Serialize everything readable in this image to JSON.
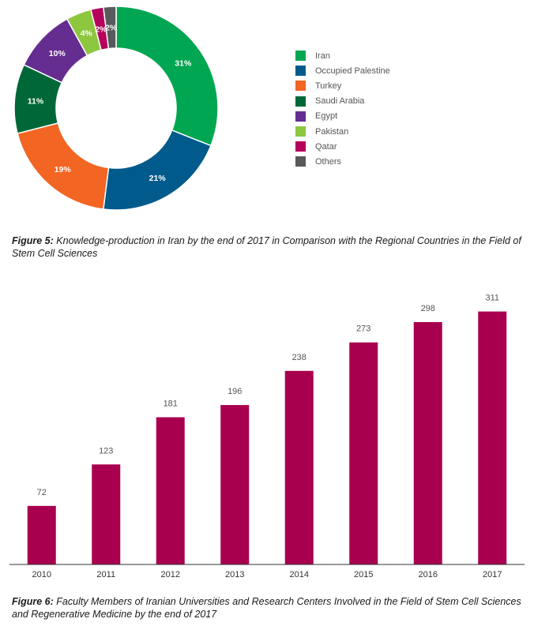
{
  "chart_data": [
    {
      "type": "pie",
      "variant": "donut",
      "slices": [
        {
          "label": "Iran",
          "value": 31,
          "display": "31%",
          "color": "#00a651"
        },
        {
          "label": "Occupied Palestine",
          "value": 21,
          "display": "21%",
          "color": "#005b8c"
        },
        {
          "label": "Turkey",
          "value": 19,
          "display": "19%",
          "color": "#f26522"
        },
        {
          "label": "Saudi Arabia",
          "value": 11,
          "display": "11%",
          "color": "#006838"
        },
        {
          "label": "Egypt",
          "value": 10,
          "display": "10%",
          "color": "#662d91"
        },
        {
          "label": "Pakistan",
          "value": 4,
          "display": "4%",
          "color": "#8dc63f"
        },
        {
          "label": "Qatar",
          "value": 2,
          "display": "2%",
          "color": "#b5005c"
        },
        {
          "label": "Others",
          "value": 2,
          "display": "2%",
          "color": "#58595b"
        }
      ],
      "legend_position": "right",
      "caption": {
        "label": "Figure 5:",
        "text": "Knowledge-production in Iran by the end of 2017 in Comparison with the Regional Countries in the Field of Stem Cell Sciences"
      }
    },
    {
      "type": "bar",
      "categories": [
        "2010",
        "2011",
        "2012",
        "2013",
        "2014",
        "2015",
        "2016",
        "2017"
      ],
      "values": [
        72,
        123,
        181,
        196,
        238,
        273,
        298,
        311
      ],
      "color": "#a8004f",
      "ylim": [
        0,
        330
      ],
      "grid": false,
      "caption": {
        "label": "Figure 6:",
        "text": "Faculty Members of  Iranian Universities and Research Centers Involved in the Field of Stem Cell Sciences and Regenerative Medicine by the end of 2017"
      }
    }
  ]
}
